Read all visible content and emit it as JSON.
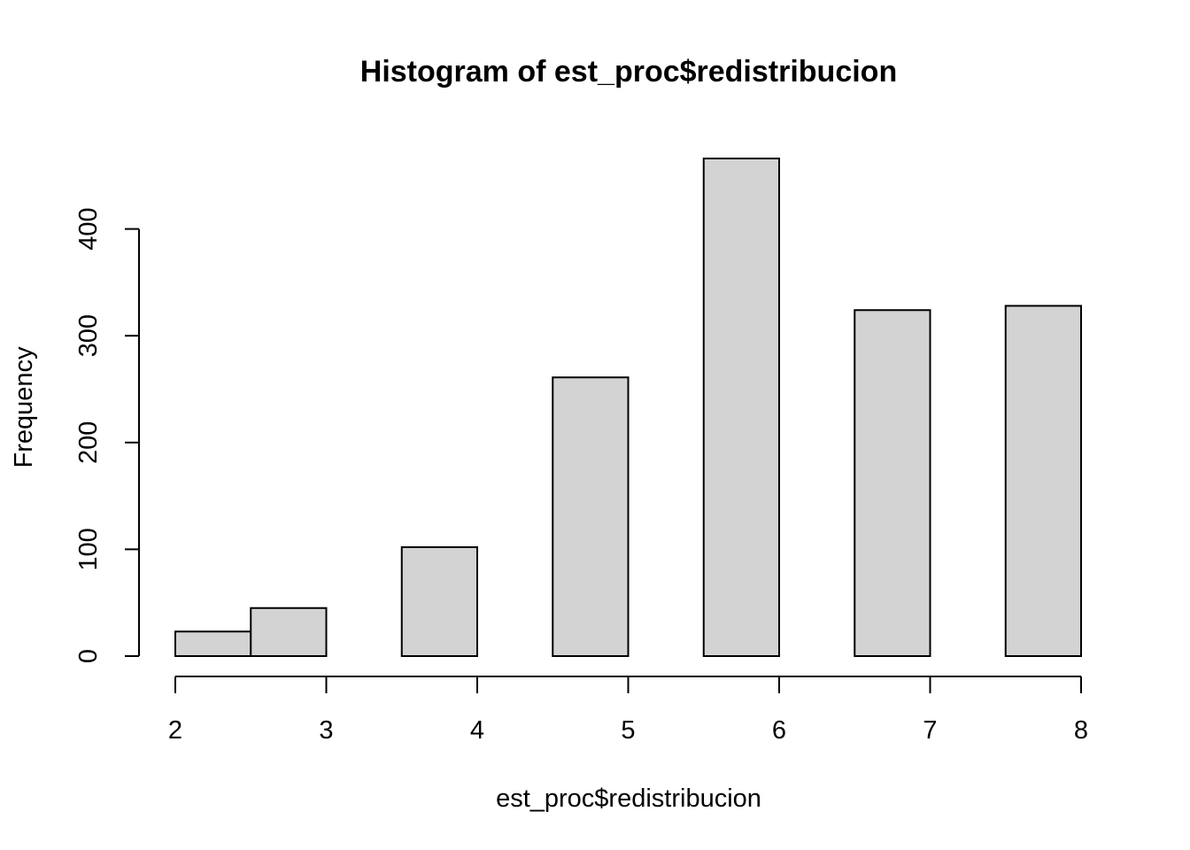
{
  "chart_data": {
    "type": "bar",
    "title": "Histogram of est_proc$redistribucion",
    "xlabel": "est_proc$redistribucion",
    "ylabel": "Frequency",
    "bins": [
      {
        "start": 2.0,
        "end": 2.5,
        "count": 23
      },
      {
        "start": 2.5,
        "end": 3.0,
        "count": 45
      },
      {
        "start": 3.0,
        "end": 3.5,
        "count": 0
      },
      {
        "start": 3.5,
        "end": 4.0,
        "count": 102
      },
      {
        "start": 4.0,
        "end": 4.5,
        "count": 0
      },
      {
        "start": 4.5,
        "end": 5.0,
        "count": 261
      },
      {
        "start": 5.0,
        "end": 5.5,
        "count": 0
      },
      {
        "start": 5.5,
        "end": 6.0,
        "count": 466
      },
      {
        "start": 6.0,
        "end": 6.5,
        "count": 0
      },
      {
        "start": 6.5,
        "end": 7.0,
        "count": 324
      },
      {
        "start": 7.0,
        "end": 7.5,
        "count": 0
      },
      {
        "start": 7.5,
        "end": 8.0,
        "count": 328
      }
    ],
    "xlim": [
      2,
      8
    ],
    "ylim": [
      0,
      466
    ],
    "xticks": [
      2,
      3,
      4,
      5,
      6,
      7,
      8
    ],
    "yticks": [
      0,
      100,
      200,
      300,
      400
    ],
    "bar_fill": "#d3d3d3",
    "bar_stroke": "#000000",
    "grid": false,
    "legend": "none"
  }
}
